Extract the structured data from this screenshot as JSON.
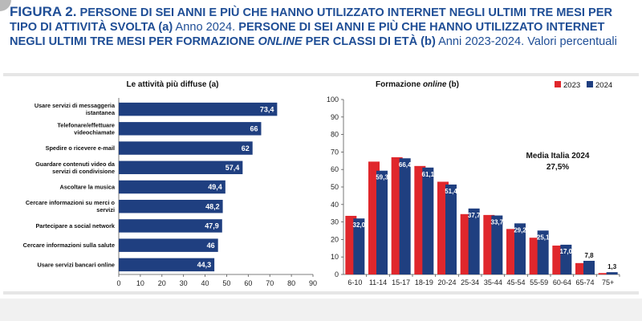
{
  "header": {
    "fig_label": "FIGURA 2.",
    "part1": "PERSONE DI SEI ANNI E PIÙ CHE HANNO UTILIZZATO INTERNET NEGLI ULTIMI TRE MESI PER TIPO DI ATTIVITÀ SVOLTA (a)",
    "part2": "Anno 2024.",
    "part3": "PERSONE DI SEI ANNI E PIÙ CHE HANNO UTILIZZATO INTERNET NEGLI ULTIMI TRE MESI PER FORMAZIONE",
    "part4": "ONLINE",
    "part5": "PER CLASSI DI ETÀ (b)",
    "part6": "Anni 2023-2024. Valori percentuali"
  },
  "colors": {
    "navy": "#1f3f80",
    "red": "#e0272c",
    "title": "#1f4e96"
  },
  "chart_data": [
    {
      "type": "bar",
      "orientation": "horizontal",
      "title": "Le attività più diffuse (a)",
      "categories": [
        [
          "Usare servizi di messaggeria",
          "istantanea"
        ],
        [
          "Telefonare/effettuare",
          "videochiamate"
        ],
        [
          "Spedire o ricevere e-mail"
        ],
        [
          "Guardare contenuti video da",
          "servizi di condivisione"
        ],
        [
          "Ascoltare la musica"
        ],
        [
          "Cercare informazioni su merci o",
          "servizi"
        ],
        [
          "Partecipare a social network"
        ],
        [
          "Cercare informazioni sulla salute"
        ],
        [
          "Usare servizi bancari online"
        ]
      ],
      "values": [
        73.4,
        66,
        62,
        57.4,
        49.4,
        48.2,
        47.9,
        46,
        44.3
      ],
      "value_labels": [
        "73,4",
        "66",
        "62",
        "57,4",
        "49,4",
        "48,2",
        "47,9",
        "46",
        "44,3"
      ],
      "xlim": [
        0,
        90
      ],
      "xticks": [
        0,
        10,
        20,
        30,
        40,
        50,
        60,
        70,
        80,
        90
      ]
    },
    {
      "type": "bar",
      "orientation": "vertical",
      "title_main": "Formazione ",
      "title_italic": "online",
      "title_end": " (b)",
      "categories": [
        "6-10",
        "11-14",
        "15-17",
        "18-19",
        "20-24",
        "25-34",
        "35-44",
        "45-54",
        "55-59",
        "60-64",
        "65-74",
        "75+"
      ],
      "series": [
        {
          "name": "2023",
          "values": [
            33.5,
            64.5,
            67,
            62,
            53,
            34.5,
            34,
            26,
            21,
            16.5,
            6.5,
            0.8
          ]
        },
        {
          "name": "2024",
          "values": [
            32.0,
            59.3,
            66.4,
            61.1,
            51.4,
            37.7,
            33.7,
            29.2,
            25.1,
            17.0,
            7.8,
            1.3
          ]
        }
      ],
      "value_labels": [
        "32,0",
        "59,3",
        "66,4",
        "61,1",
        "51,4",
        "37,7",
        "33,7",
        "29,2",
        "25,1",
        "17,0",
        "7,8",
        "1,3"
      ],
      "ylim": [
        0,
        100
      ],
      "yticks": [
        0,
        10,
        20,
        30,
        40,
        50,
        60,
        70,
        80,
        90,
        100
      ],
      "legend_position": "top-right",
      "annotation": {
        "line1": "Media Italia 2024",
        "line2": "27,5%"
      }
    }
  ]
}
